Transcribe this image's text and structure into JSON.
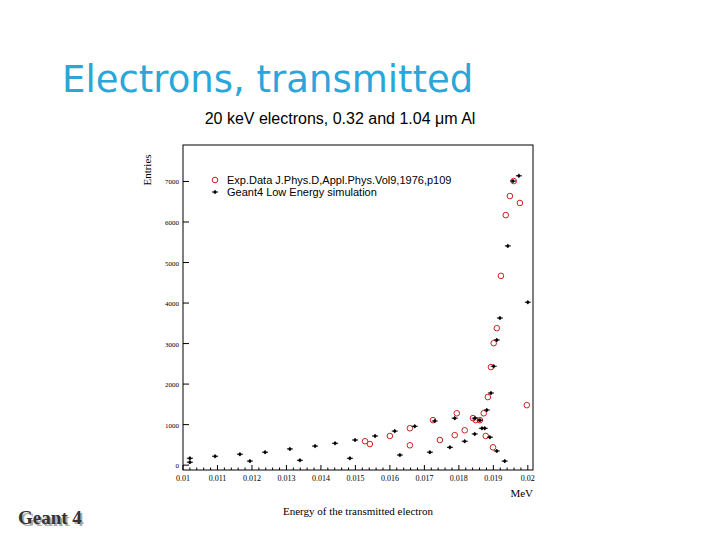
{
  "slide": {
    "title": "Electrons, transmitted",
    "subtitle": "20 keV electrons, 0.32 and 1.04 μm Al",
    "logo": "Geant 4"
  },
  "chart_data": {
    "type": "scatter",
    "x_label": "Energy of the transmitted electron",
    "x_unit": "MeV",
    "y_label": "Entries",
    "xlim": [
      0.01,
      0.02015
    ],
    "ylim": [
      -120,
      7900
    ],
    "xticks": [
      0.01,
      0.011,
      0.012,
      0.013,
      0.014,
      0.015,
      0.016,
      0.017,
      0.018,
      0.019,
      0.02
    ],
    "yticks": [
      0,
      1000,
      2000,
      3000,
      4000,
      5000,
      6000,
      7000
    ],
    "grid": false,
    "legend": "upper left",
    "series": [
      {
        "name": "Exp.Data J.Phys.D,Appl.Phys.Vol9,1976,p109",
        "color": "#cc2222",
        "marker": "circle",
        "x": [
          0.01542,
          0.01658,
          0.01745,
          0.01788,
          0.01817,
          0.01849,
          0.01872,
          0.01884,
          0.01893,
          0.01901,
          0.0191,
          0.01922,
          0.01936,
          0.01948,
          0.01959,
          0.01977,
          0.01997
        ],
        "values": [
          520,
          490,
          620,
          740,
          860,
          1110,
          1280,
          1680,
          2420,
          3010,
          3380,
          4670,
          6170,
          6640,
          7010,
          6470,
          1480
        ]
      },
      {
        "name": "Geant4 Low Energy simulation",
        "color": "#000000",
        "marker": "cross",
        "x": [
          0.0102,
          0.01194,
          0.01339,
          0.01484,
          0.01629,
          0.01716,
          0.01774,
          0.01817,
          0.01846,
          0.01867,
          0.01881,
          0.01893,
          0.01901,
          0.0191,
          0.01919,
          0.01942,
          0.01957,
          0.01974,
          0.02
        ],
        "values": [
          74,
          100,
          120,
          170,
          250,
          320,
          440,
          590,
          770,
          910,
          1360,
          1780,
          2440,
          3090,
          3630,
          5410,
          7010,
          7140,
          4020
        ]
      },
      {
        "name": "Exp.Data J.Phys.D,Appl.Phys.Vol9,1976,p109",
        "color": "#cc2222",
        "marker": "circle",
        "x": [
          0.01528,
          0.016,
          0.01658,
          0.01725,
          0.01794,
          0.01841,
          0.01861,
          0.01878,
          0.01899
        ],
        "values": [
          590,
          720,
          910,
          1110,
          1280,
          1160,
          1110,
          720,
          440
        ]
      },
      {
        "name": "Geant4 Low Energy simulation",
        "color": "#000000",
        "marker": "cross",
        "x": [
          0.0102,
          0.01093,
          0.01165,
          0.01238,
          0.0131,
          0.01383,
          0.01441,
          0.01499,
          0.01557,
          0.01614,
          0.01672,
          0.0173,
          0.01788,
          0.01846,
          0.01861,
          0.01875,
          0.0189,
          0.0191,
          0.01933
        ],
        "values": [
          170,
          220,
          270,
          320,
          400,
          470,
          540,
          620,
          720,
          840,
          960,
          1090,
          1160,
          1160,
          1110,
          910,
          690,
          350,
          100
        ]
      }
    ]
  }
}
